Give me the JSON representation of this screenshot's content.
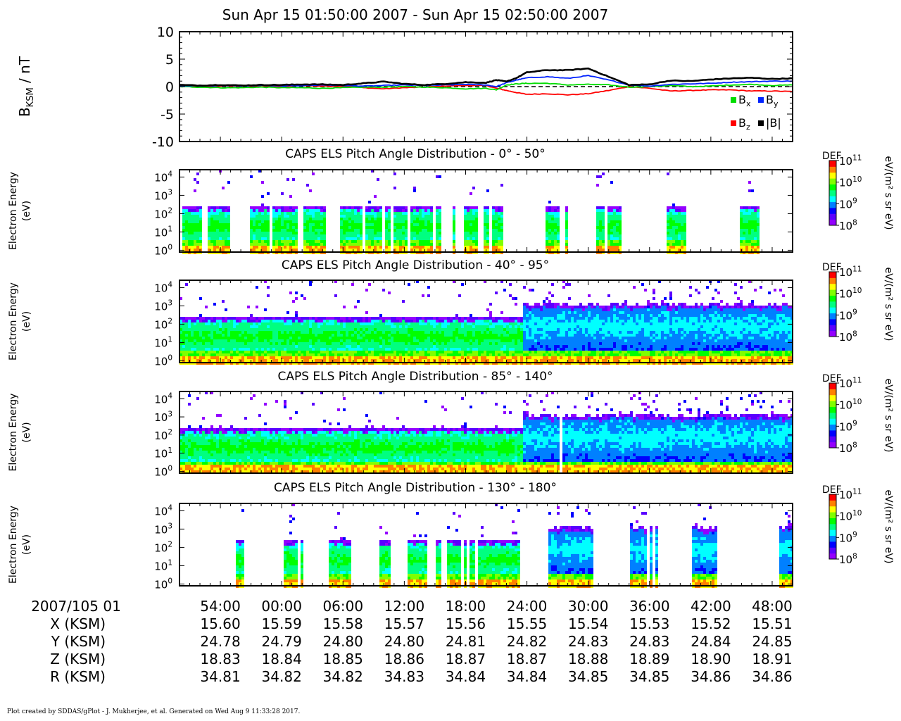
{
  "title": "Sun Apr 15 01:50:00 2007 - Sun Apr 15 02:50:00 2007",
  "footer": "Plot created by SDDAS/gPlot - J. Mukherjee, et al.  Generated on Wed Aug 9 11:33:28 2017.",
  "colors": {
    "bx": "#00dd00",
    "by": "#0022ff",
    "bz": "#ff0000",
    "bmag": "#000000",
    "colormap": [
      "#9400ff",
      "#5a00ff",
      "#0000ff",
      "#0080ff",
      "#00ffff",
      "#00ff80",
      "#00ff00",
      "#80ff00",
      "#ffff00",
      "#ff8000",
      "#ff0000"
    ]
  },
  "chart_data": [
    {
      "type": "line",
      "id": "magnetometer",
      "ylabel_main": "B",
      "ylabel_sub": "KSM",
      "ylabel_unit": " / nT",
      "ylim": [
        -10,
        10
      ],
      "yticks": [
        "10",
        "5",
        "0",
        "-5",
        "-10"
      ],
      "ytick_values": [
        10,
        5,
        0,
        -5,
        -10
      ],
      "xlim_minutes": [
        50,
        110
      ],
      "legend": [
        {
          "main": "B",
          "sub": "x",
          "color": "#00dd00"
        },
        {
          "main": "B",
          "sub": "y",
          "color": "#0022ff"
        },
        {
          "main": "B",
          "sub": "z",
          "color": "#ff0000"
        },
        {
          "main": "|B|",
          "sub": "",
          "color": "#000000"
        }
      ],
      "series": [
        {
          "key": "bx",
          "color": "#00dd00",
          "x": [
            50,
            52,
            54,
            56,
            58,
            60,
            62,
            64,
            66,
            68,
            70,
            72,
            74,
            76,
            78,
            80,
            81,
            82,
            83,
            84,
            86,
            88,
            90,
            92,
            94,
            96,
            98,
            100,
            102,
            104,
            106,
            108,
            110
          ],
          "y": [
            0.0,
            -0.1,
            -0.2,
            -0.2,
            -0.1,
            -0.2,
            -0.2,
            -0.3,
            -0.2,
            -0.1,
            -0.1,
            0.0,
            -0.1,
            -0.2,
            -0.4,
            -0.3,
            -0.6,
            0.3,
            0.5,
            0.6,
            0.6,
            0.3,
            0.4,
            0.3,
            -0.1,
            0.0,
            0.2,
            0.0,
            0.1,
            0.3,
            0.4,
            0.2,
            0.3
          ]
        },
        {
          "key": "by",
          "color": "#0022ff",
          "x": [
            50,
            52,
            54,
            56,
            58,
            60,
            62,
            64,
            66,
            68,
            70,
            72,
            74,
            76,
            78,
            80,
            81,
            82,
            83,
            84,
            86,
            88,
            90,
            92,
            94,
            96,
            98,
            100,
            102,
            104,
            106,
            108,
            110
          ],
          "y": [
            0.2,
            0.1,
            0.2,
            0.1,
            0.2,
            0.1,
            0.2,
            0.3,
            0.2,
            0.1,
            0.2,
            0.3,
            0.2,
            0.3,
            0.4,
            0.3,
            0.0,
            0.7,
            1.2,
            1.6,
            1.8,
            1.5,
            2.0,
            1.2,
            0.3,
            0.1,
            0.4,
            0.5,
            0.6,
            0.8,
            0.9,
            1.0,
            1.0
          ]
        },
        {
          "key": "bz",
          "color": "#ff0000",
          "x": [
            50,
            52,
            54,
            56,
            58,
            60,
            62,
            64,
            66,
            68,
            70,
            72,
            74,
            76,
            78,
            80,
            81,
            82,
            83,
            84,
            86,
            88,
            90,
            92,
            94,
            96,
            98,
            100,
            102,
            104,
            106,
            108,
            110
          ],
          "y": [
            0.1,
            0.0,
            0.1,
            0.1,
            0.0,
            0.0,
            0.2,
            0.1,
            0.1,
            -0.2,
            -0.4,
            -0.2,
            -0.1,
            0.1,
            0.2,
            0.2,
            -0.3,
            -0.7,
            -1.1,
            -1.4,
            -1.3,
            -1.5,
            -1.3,
            -0.7,
            0.0,
            -0.3,
            -0.8,
            -0.7,
            -0.6,
            -0.6,
            -0.8,
            -0.8,
            -0.9
          ]
        },
        {
          "key": "bmag",
          "color": "#000000",
          "x": [
            50,
            52,
            54,
            56,
            58,
            60,
            62,
            64,
            66,
            68,
            70,
            72,
            74,
            76,
            78,
            80,
            81,
            82,
            83,
            84,
            86,
            88,
            90,
            92,
            94,
            96,
            98,
            100,
            102,
            104,
            106,
            108,
            110
          ],
          "y": [
            0.3,
            0.2,
            0.3,
            0.2,
            0.3,
            0.3,
            0.4,
            0.4,
            0.3,
            0.6,
            0.9,
            0.5,
            0.3,
            0.5,
            0.8,
            0.7,
            1.2,
            0.9,
            1.6,
            2.6,
            3.0,
            3.0,
            3.3,
            1.8,
            0.3,
            0.4,
            1.1,
            1.0,
            1.3,
            1.5,
            1.6,
            1.4,
            1.5
          ]
        }
      ]
    },
    {
      "type": "heatmap",
      "id": "pad1",
      "title": "CAPS ELS Pitch Angle Distribution - 0° - 50°",
      "ylabel": [
        "Electron Energy",
        "(eV)"
      ],
      "yticks": [
        {
          "base": "10",
          "exp": "4",
          "value": 4
        },
        {
          "base": "10",
          "exp": "3",
          "value": 3
        },
        {
          "base": "10",
          "exp": "2",
          "value": 2
        },
        {
          "base": "10",
          "exp": "1",
          "value": 1
        },
        {
          "base": "10",
          "exp": "0",
          "value": 0
        }
      ],
      "ylim_log10": [
        -0.1,
        4.4
      ],
      "xlim_minutes": [
        50,
        110
      ],
      "colorbar": {
        "label": "DEF",
        "unit": "eV/(m² s sr eV)",
        "ticks": [
          {
            "base": "10",
            "exp": "11"
          },
          {
            "base": "10",
            "exp": "10"
          },
          {
            "base": "10",
            "exp": "9"
          },
          {
            "base": "10",
            "exp": "8"
          }
        ],
        "range_log10": [
          8,
          11
        ]
      },
      "coverage_minutes": [
        [
          50.2,
          52.2
        ],
        [
          52.7,
          55.0
        ],
        [
          56.8,
          58.7
        ],
        [
          59.2,
          61.7
        ],
        [
          62.0,
          64.2
        ],
        [
          65.8,
          67.9
        ],
        [
          68.2,
          69.8
        ],
        [
          70.0,
          70.6
        ],
        [
          70.9,
          72.2
        ],
        [
          72.7,
          74.8
        ],
        [
          75.2,
          75.5
        ],
        [
          76.7,
          77.1
        ],
        [
          77.7,
          79.2
        ],
        [
          79.7,
          80.2
        ],
        [
          80.7,
          81.7
        ],
        [
          85.7,
          87.2
        ],
        [
          87.7,
          88.1
        ],
        [
          90.7,
          91.7
        ],
        [
          92.0,
          93.2
        ],
        [
          97.7,
          99.6
        ],
        [
          104.7,
          106.7
        ]
      ]
    },
    {
      "type": "heatmap",
      "id": "pad2",
      "title": "CAPS ELS Pitch Angle Distribution - 40° - 95°",
      "ylabel": [
        "Electron Energy",
        "(eV)"
      ],
      "yticks": [
        {
          "base": "10",
          "exp": "4",
          "value": 4
        },
        {
          "base": "10",
          "exp": "3",
          "value": 3
        },
        {
          "base": "10",
          "exp": "2",
          "value": 2
        },
        {
          "base": "10",
          "exp": "1",
          "value": 1
        },
        {
          "base": "10",
          "exp": "0",
          "value": 0
        }
      ],
      "ylim_log10": [
        -0.1,
        4.4
      ],
      "xlim_minutes": [
        50,
        110
      ],
      "colorbar": {
        "label": "DEF",
        "unit": "eV/(m² s sr eV)",
        "ticks": [
          {
            "base": "10",
            "exp": "11"
          },
          {
            "base": "10",
            "exp": "10"
          },
          {
            "base": "10",
            "exp": "9"
          },
          {
            "base": "10",
            "exp": "8"
          }
        ],
        "range_log10": [
          8,
          11
        ]
      },
      "coverage_minutes": [
        [
          50.0,
          110.0
        ]
      ]
    },
    {
      "type": "heatmap",
      "id": "pad3",
      "title": "CAPS ELS Pitch Angle Distribution - 85° - 140°",
      "ylabel": [
        "Electron Energy",
        "(eV)"
      ],
      "yticks": [
        {
          "base": "10",
          "exp": "4",
          "value": 4
        },
        {
          "base": "10",
          "exp": "3",
          "value": 3
        },
        {
          "base": "10",
          "exp": "2",
          "value": 2
        },
        {
          "base": "10",
          "exp": "1",
          "value": 1
        },
        {
          "base": "10",
          "exp": "0",
          "value": 0
        }
      ],
      "ylim_log10": [
        -0.1,
        4.4
      ],
      "xlim_minutes": [
        50,
        110
      ],
      "colorbar": {
        "label": "DEF",
        "unit": "eV/(m² s sr eV)",
        "ticks": [
          {
            "base": "10",
            "exp": "11"
          },
          {
            "base": "10",
            "exp": "10"
          },
          {
            "base": "10",
            "exp": "9"
          },
          {
            "base": "10",
            "exp": "8"
          }
        ],
        "range_log10": [
          8,
          11
        ]
      },
      "coverage_minutes": [
        [
          50.0,
          87.1
        ],
        [
          87.6,
          110.0
        ]
      ]
    },
    {
      "type": "heatmap",
      "id": "pad4",
      "title": "CAPS ELS Pitch Angle Distribution - 130° - 180°",
      "ylabel": [
        "Electron Energy",
        "(eV)"
      ],
      "yticks": [
        {
          "base": "10",
          "exp": "4",
          "value": 4
        },
        {
          "base": "10",
          "exp": "3",
          "value": 3
        },
        {
          "base": "10",
          "exp": "2",
          "value": 2
        },
        {
          "base": "10",
          "exp": "1",
          "value": 1
        },
        {
          "base": "10",
          "exp": "0",
          "value": 0
        }
      ],
      "ylim_log10": [
        -0.1,
        4.4
      ],
      "xlim_minutes": [
        50,
        110
      ],
      "colorbar": {
        "label": "DEF",
        "unit": "eV/(m² s sr eV)",
        "ticks": [
          {
            "base": "10",
            "exp": "11"
          },
          {
            "base": "10",
            "exp": "10"
          },
          {
            "base": "10",
            "exp": "9"
          },
          {
            "base": "10",
            "exp": "8"
          }
        ],
        "range_log10": [
          8,
          11
        ]
      },
      "coverage_minutes": [
        [
          55.4,
          56.2
        ],
        [
          60.2,
          60.5
        ],
        [
          60.6,
          60.9
        ],
        [
          61.0,
          61.3
        ],
        [
          61.4,
          61.7
        ],
        [
          61.8,
          62.1
        ],
        [
          64.7,
          66.7
        ],
        [
          69.7,
          70.7
        ],
        [
          72.2,
          74.2
        ],
        [
          75.2,
          75.6
        ],
        [
          76.2,
          77.6
        ],
        [
          77.8,
          78.2
        ],
        [
          78.3,
          79.0
        ],
        [
          79.2,
          80.5
        ],
        [
          80.7,
          83.4
        ],
        [
          86.2,
          88.2
        ],
        [
          88.3,
          90.6
        ],
        [
          94.2,
          95.7
        ],
        [
          96.0,
          96.3
        ],
        [
          96.5,
          96.9
        ],
        [
          100.2,
          102.7
        ],
        [
          108.7,
          110.0
        ]
      ]
    }
  ],
  "time_axis": {
    "header": "2007/105 01",
    "ticks": [
      "54:00",
      "00:00",
      "06:00",
      "12:00",
      "18:00",
      "24:00",
      "30:00",
      "36:00",
      "42:00",
      "48:00"
    ],
    "tick_minutes": [
      54,
      60,
      66,
      72,
      78,
      84,
      90,
      96,
      102,
      108
    ]
  },
  "ephemeris": [
    {
      "label": "X (KSM)",
      "values": [
        "15.60",
        "15.59",
        "15.58",
        "15.57",
        "15.56",
        "15.55",
        "15.54",
        "15.53",
        "15.52",
        "15.51"
      ]
    },
    {
      "label": "Y (KSM)",
      "values": [
        "24.78",
        "24.79",
        "24.80",
        "24.80",
        "24.81",
        "24.82",
        "24.83",
        "24.83",
        "24.84",
        "24.85"
      ]
    },
    {
      "label": "Z (KSM)",
      "values": [
        "18.83",
        "18.84",
        "18.85",
        "18.86",
        "18.87",
        "18.87",
        "18.88",
        "18.89",
        "18.90",
        "18.91"
      ]
    },
    {
      "label": "R (KSM)",
      "values": [
        "34.81",
        "34.82",
        "34.82",
        "34.83",
        "34.84",
        "34.84",
        "34.85",
        "34.85",
        "34.86",
        "34.86"
      ]
    }
  ]
}
